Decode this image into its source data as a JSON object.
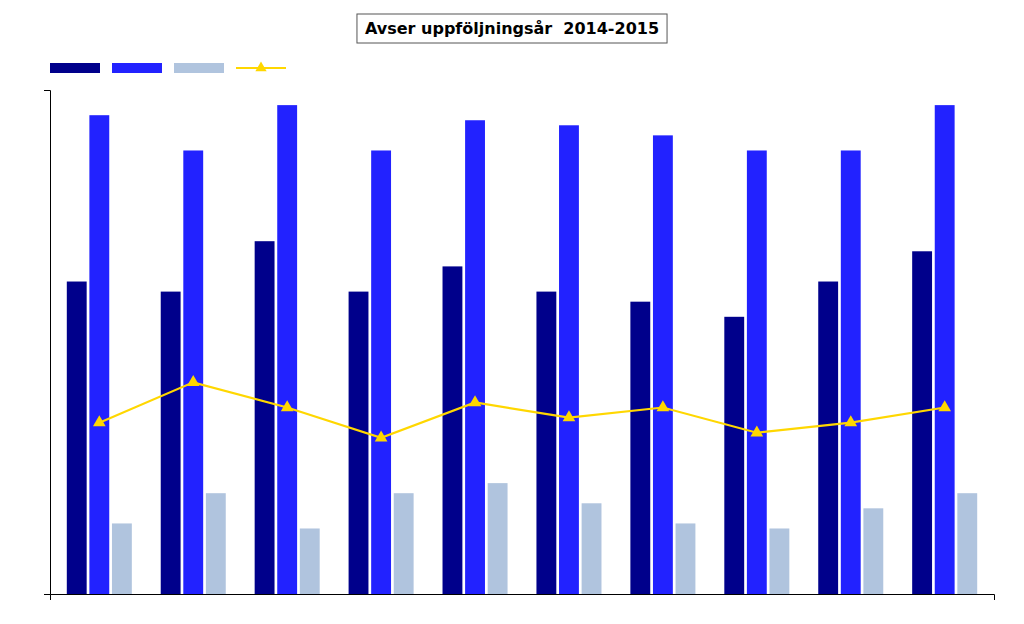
{
  "chart_data": {
    "type": "bar",
    "title": "Avser uppföljningsår  2014-2015",
    "categories": [
      null,
      null,
      null,
      null,
      null,
      null,
      null,
      null,
      null,
      null
    ],
    "series": [
      {
        "type": "bar",
        "color": "#00008B",
        "values": [
          62,
          60,
          70,
          60,
          65,
          60,
          58,
          55,
          62,
          68
        ]
      },
      {
        "type": "bar",
        "color": "#2222FF",
        "values": [
          95,
          88,
          97,
          88,
          94,
          93,
          91,
          88,
          88,
          97
        ]
      },
      {
        "type": "bar",
        "color": "#B0C4DE",
        "values": [
          14,
          20,
          13,
          20,
          22,
          18,
          14,
          13,
          17,
          20
        ]
      },
      {
        "type": "line",
        "color": "#FFD700",
        "marker": "triangle",
        "line_style": "solid",
        "values": [
          34,
          42,
          37,
          31,
          38,
          35,
          37,
          32,
          34,
          37
        ]
      }
    ],
    "ylim": [
      0,
      100
    ],
    "tick_labels": false,
    "grid": false,
    "legend": "upper left"
  }
}
